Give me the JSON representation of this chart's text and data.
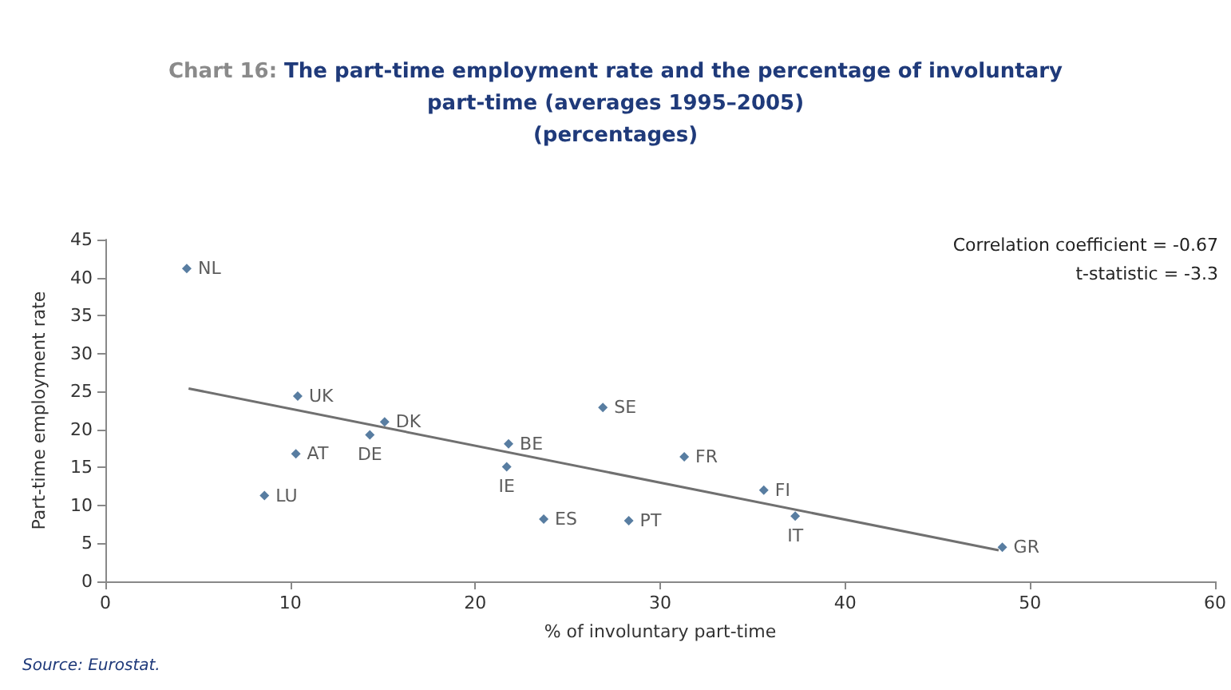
{
  "chart_data": {
    "type": "scatter",
    "title": "Chart 16: The part-time employment rate and the percentage of involuntary\npart-time (averages 1995–2005)\n(percentages)",
    "xlabel": "% of involuntary part-time",
    "ylabel": "Part-time employment rate",
    "annotations": [
      "Correlation coefficient = -0.67",
      "t-statistic = -3.3",
      "Source: Eurostat."
    ],
    "series": [
      {
        "type": "scatter",
        "color": "#2e5c8a",
        "x": [
          4.4,
          10.4,
          15.1,
          14.3,
          10.3,
          8.6,
          21.8,
          21.7,
          23.7,
          26.9,
          28.3,
          31.3,
          35.6,
          37.3,
          48.5
        ],
        "values": [
          41.2,
          24.4,
          21.0,
          19.3,
          16.8,
          11.3,
          18.1,
          15.1,
          8.2,
          22.9,
          8.0,
          16.4,
          12.0,
          8.6,
          4.5
        ],
        "value_labels": [
          "NL",
          "UK",
          "DK",
          "DE",
          "AT",
          "LU",
          "BE",
          "IE",
          "ES",
          "SE",
          "PT",
          "FR",
          "FI",
          "IT",
          "GR"
        ]
      },
      {
        "type": "line",
        "color": "#707070",
        "marker": "none",
        "x": [
          4.5,
          48.3
        ],
        "values": [
          25.4,
          4.1
        ]
      }
    ],
    "xlim": [
      0,
      60
    ],
    "xticks": [
      0,
      10,
      20,
      30,
      40,
      50,
      60
    ],
    "ylim": [
      0,
      45
    ],
    "yticks": [
      0,
      5,
      10,
      15,
      20,
      25,
      30,
      35,
      40,
      45
    ],
    "marker": "diamond"
  }
}
